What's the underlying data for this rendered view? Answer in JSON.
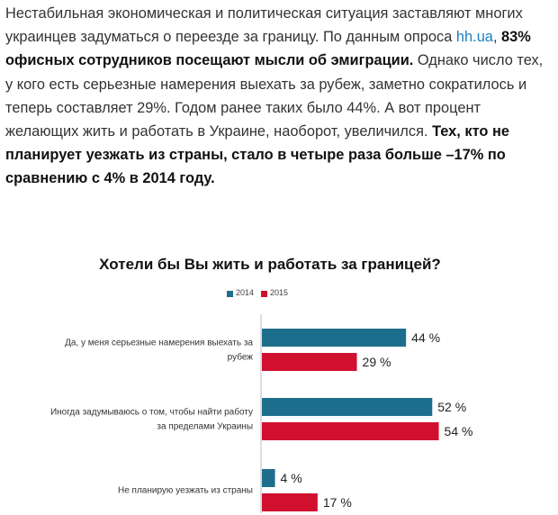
{
  "article": {
    "p1": "Нестабильная экономическая и политическая ситуация заставляют многих украинцев задуматься о переезде за границу. По данным опроса ",
    "link": "hh.ua",
    "p2": ", ",
    "bold1": "83% офисных сотрудников посещают мысли об эмиграции.",
    "p3": " Однако число тех, у кого есть серьезные намерения выехать за рубеж, заметно сократилось и теперь составляет 29%. Годом ранее таких было 44%. А вот процент желающих жить и работать в Украине, наоборот, увеличился. ",
    "bold2": "Тех, кто не планирует уезжать из страны, стало в четыре раза больше –17% по сравнению с 4% в 2014 году."
  },
  "colors": {
    "s2014": "#1d6e8c",
    "s2015": "#d1102f"
  },
  "chart_data": {
    "type": "bar",
    "orientation": "horizontal",
    "title": "Хотели бы Вы жить и работать за границей?",
    "legend_position": "top",
    "categories": [
      [
        "Да, у меня серьезные намерения выехать за",
        "рубеж"
      ],
      [
        "Иногда задумываюсь о том, чтобы найти работу",
        "за пределами Украины"
      ],
      [
        "Не планирую уезжать из страны"
      ]
    ],
    "series": [
      {
        "name": "2014",
        "values": [
          44,
          52,
          4
        ],
        "labels": [
          "44 %",
          "52 %",
          "4 %"
        ]
      },
      {
        "name": "2015",
        "values": [
          29,
          54,
          17
        ],
        "labels": [
          "29 %",
          "54 %",
          "17 %"
        ]
      }
    ]
  }
}
